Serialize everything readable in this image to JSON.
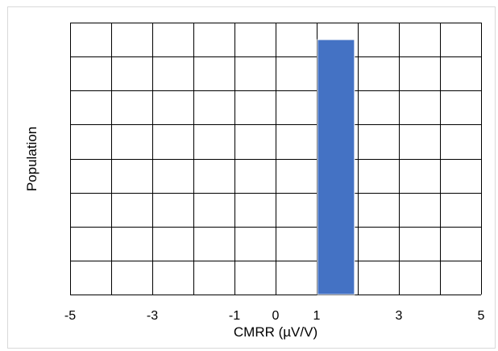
{
  "chart_data": {
    "type": "bar",
    "title": "",
    "xlabel": "CMRR (µV/V)",
    "ylabel": "Population",
    "xlim": [
      -5,
      5
    ],
    "ylim": [
      0,
      8
    ],
    "grid": true,
    "x_tick_labels": [
      {
        "value": -5,
        "label": "-5"
      },
      {
        "value": -3,
        "label": "-3"
      },
      {
        "value": -1,
        "label": "-1"
      },
      {
        "value": 0,
        "label": "0"
      },
      {
        "value": 1,
        "label": "1"
      },
      {
        "value": 3,
        "label": "3"
      },
      {
        "value": 5,
        "label": "5"
      }
    ],
    "grid_x_step": 1,
    "grid_y_step": 1,
    "bins": [
      {
        "x_start": 1.0,
        "x_end": 1.9,
        "value": 7.5
      }
    ],
    "colors": {
      "bar": "#4472c4",
      "grid": "#000000"
    }
  }
}
